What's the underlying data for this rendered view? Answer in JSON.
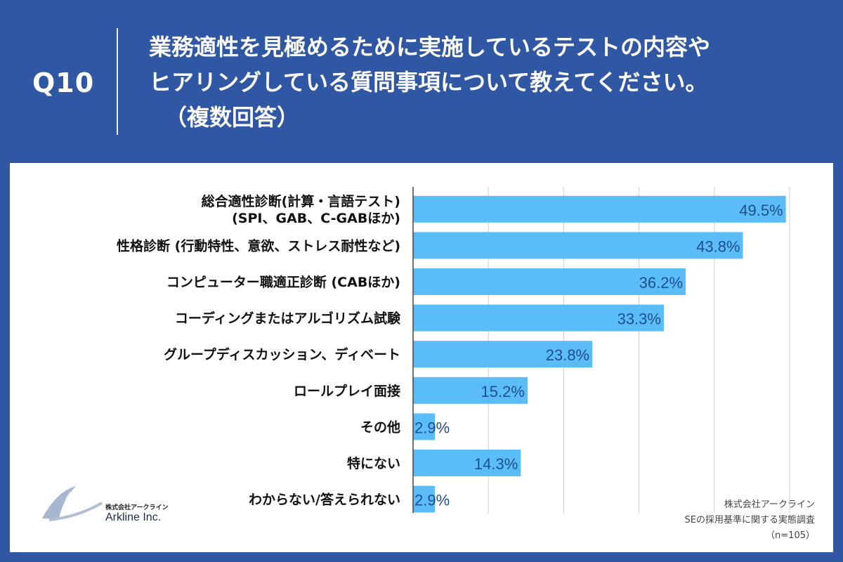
{
  "header": {
    "question_number": "Q10",
    "question_line1": "業務適性を見極めるために実施しているテストの内容や",
    "question_line2": "ヒアリングしている質問事項について教えてください。",
    "question_line3": "（複数回答）"
  },
  "logo": {
    "company_jp": "株式会社アークライン",
    "company_en": "Arkline Inc.",
    "mark_text": "Ark Line"
  },
  "source": {
    "company": "株式会社アークライン",
    "survey": "SEの採用基準に関する実態調査",
    "sample": "（n=105）"
  },
  "colors": {
    "background": "#3057a4",
    "bar": "#5bbdf8",
    "value_text": "#1f4e8c",
    "grid": "#cfcfcf"
  },
  "chart_data": {
    "type": "bar",
    "orientation": "horizontal",
    "categories": [
      [
        "総合適性診断(計算・言語テスト)",
        "(SPI、GAB、C-GABほか)"
      ],
      [
        "性格診断 (行動特性、意欲、ストレス耐性など)"
      ],
      [
        "コンピューター職適正診断 (CABほか)"
      ],
      [
        "コーディングまたはアルゴリズム試験"
      ],
      [
        "グループディスカッション、ディベート"
      ],
      [
        "ロールプレイ面接"
      ],
      [
        "その他"
      ],
      [
        "特にない"
      ],
      [
        "わからない/答えられない"
      ]
    ],
    "values": [
      49.5,
      43.8,
      36.2,
      33.3,
      23.8,
      15.2,
      2.9,
      14.3,
      2.9
    ],
    "value_labels": [
      "49.5%",
      "43.8%",
      "36.2%",
      "33.3%",
      "23.8%",
      "15.2%",
      "2.9%",
      "14.3%",
      "2.9%"
    ],
    "xlim": [
      0,
      50
    ],
    "grid": true
  }
}
